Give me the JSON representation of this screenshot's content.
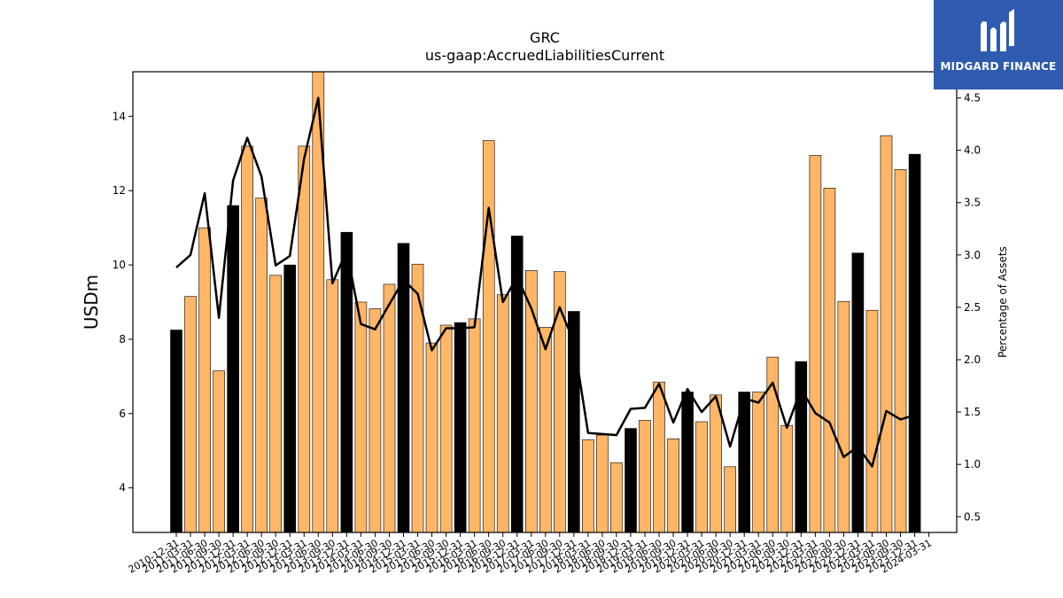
{
  "chart_data": {
    "type": "bar",
    "title": "GRC",
    "subtitle": "us-gaap:AccruedLiabilitiesCurrent",
    "ylabel": "USDm",
    "y2label": "Percentage of Assets",
    "ylim": [
      2.8,
      15.2
    ],
    "y2lim": [
      0.35,
      4.75
    ],
    "yticks": [
      4,
      6,
      8,
      10,
      12,
      14
    ],
    "y2ticks": [
      0.5,
      1.0,
      1.5,
      2.0,
      2.5,
      3.0,
      3.5,
      4.0,
      4.5
    ],
    "categories": [
      "2010-12-31",
      "2011-03-31",
      "2011-06-30",
      "2011-09-30",
      "2011-12-31",
      "2012-03-31",
      "2012-06-30",
      "2012-09-30",
      "2012-12-31",
      "2013-03-31",
      "2013-06-30",
      "2013-09-30",
      "2013-12-31",
      "2014-03-31",
      "2014-06-30",
      "2014-09-30",
      "2014-12-31",
      "2015-03-31",
      "2015-06-30",
      "2015-09-30",
      "2015-12-31",
      "2016-03-31",
      "2016-06-30",
      "2016-09-30",
      "2016-12-31",
      "2017-03-31",
      "2017-06-30",
      "2017-09-30",
      "2017-12-31",
      "2018-03-31",
      "2018-06-30",
      "2018-09-30",
      "2018-12-31",
      "2019-03-31",
      "2019-06-30",
      "2019-09-30",
      "2019-12-31",
      "2020-03-31",
      "2020-06-30",
      "2020-09-30",
      "2020-12-31",
      "2021-03-31",
      "2021-06-30",
      "2021-09-30",
      "2021-12-31",
      "2022-03-31",
      "2022-06-30",
      "2022-09-30",
      "2022-12-31",
      "2023-03-31",
      "2023-06-30",
      "2023-09-30",
      "2023-12-31",
      "2024-03-31"
    ],
    "series": [
      {
        "values": [
          8.25,
          9.15,
          11.0,
          7.15,
          11.6,
          13.2,
          11.8,
          9.72,
          10.0,
          13.2,
          15.25,
          9.6,
          10.88,
          9.0,
          8.82,
          9.48,
          10.58,
          10.02,
          7.9,
          8.38,
          8.45,
          8.55,
          13.35,
          9.2,
          10.78,
          9.85,
          8.32,
          9.82,
          8.75,
          5.3,
          5.42,
          4.68,
          5.6,
          5.82,
          6.85,
          5.32,
          6.58,
          5.78,
          6.5,
          4.57,
          6.58,
          6.58,
          7.52,
          5.68,
          7.4,
          12.95,
          12.07,
          9.02,
          10.32,
          8.78,
          13.48,
          12.57,
          12.98,
          null
        ]
      },
      {
        "values": [
          2.88,
          3.0,
          3.59,
          2.4,
          3.71,
          4.12,
          3.75,
          2.9,
          2.99,
          3.92,
          4.5,
          2.73,
          3.04,
          2.34,
          2.29,
          2.53,
          2.76,
          2.63,
          2.09,
          2.3,
          2.3,
          2.31,
          3.45,
          2.55,
          2.79,
          2.49,
          2.1,
          2.5,
          2.17,
          1.3,
          1.29,
          1.28,
          1.53,
          1.54,
          1.77,
          1.4,
          1.72,
          1.5,
          1.65,
          1.17,
          1.63,
          1.59,
          1.78,
          1.35,
          1.72,
          1.49,
          1.4,
          1.07,
          1.17,
          0.98,
          1.51,
          1.43,
          1.47,
          null
        ]
      }
    ],
    "year_end_color": "#000000",
    "quarter_color": "#ffb666",
    "line_color": "#000000"
  },
  "logo": {
    "text": "MIDGARD FINANCE",
    "bg": "#2e5bb0"
  }
}
